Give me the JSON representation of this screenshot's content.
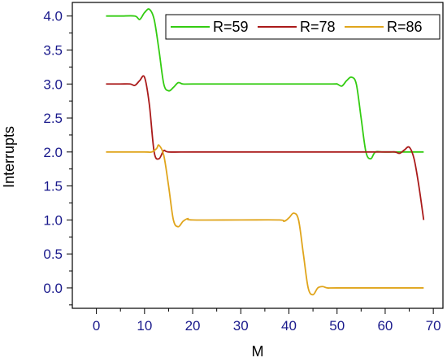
{
  "chart_data": {
    "type": "line",
    "title": "",
    "xlabel": "M",
    "ylabel": "Interrupts",
    "xlim": [
      -5,
      72
    ],
    "ylim": [
      -0.3,
      4.2
    ],
    "xticks": [
      0,
      10,
      20,
      30,
      40,
      50,
      60,
      70
    ],
    "yticks": [
      0.0,
      0.5,
      1.0,
      1.5,
      2.0,
      2.5,
      3.0,
      3.5,
      4.0
    ],
    "tick_format_y": 1,
    "grid": false,
    "legend_position": "top-right",
    "series": [
      {
        "name": "R=59",
        "color": "#33cc11",
        "points": [
          [
            2,
            4.0
          ],
          [
            5,
            4.0
          ],
          [
            8,
            4.0
          ],
          [
            9,
            3.95
          ],
          [
            10,
            4.05
          ],
          [
            11,
            4.1
          ],
          [
            12,
            3.95
          ],
          [
            13,
            3.5
          ],
          [
            14,
            3.0
          ],
          [
            15,
            2.9
          ],
          [
            16,
            2.95
          ],
          [
            17,
            3.02
          ],
          [
            18,
            3.0
          ],
          [
            20,
            3.0
          ],
          [
            30,
            3.0
          ],
          [
            40,
            3.0
          ],
          [
            49,
            3.0
          ],
          [
            50,
            3.0
          ],
          [
            51,
            2.97
          ],
          [
            52,
            3.05
          ],
          [
            53,
            3.1
          ],
          [
            54,
            3.0
          ],
          [
            55,
            2.5
          ],
          [
            56,
            2.0
          ],
          [
            57,
            1.9
          ],
          [
            58,
            2.0
          ],
          [
            60,
            2.0
          ],
          [
            68,
            2.0
          ]
        ]
      },
      {
        "name": "R=78",
        "color": "#aa1a1a",
        "points": [
          [
            2,
            3.0
          ],
          [
            5,
            3.0
          ],
          [
            7,
            3.0
          ],
          [
            8,
            2.98
          ],
          [
            9,
            3.05
          ],
          [
            10,
            3.1
          ],
          [
            11,
            2.7
          ],
          [
            12,
            2.0
          ],
          [
            13,
            1.9
          ],
          [
            14,
            2.02
          ],
          [
            15,
            2.0
          ],
          [
            20,
            2.0
          ],
          [
            30,
            2.0
          ],
          [
            40,
            2.0
          ],
          [
            50,
            2.0
          ],
          [
            60,
            2.0
          ],
          [
            62,
            2.0
          ],
          [
            63,
            1.98
          ],
          [
            64,
            2.03
          ],
          [
            65,
            2.07
          ],
          [
            66,
            1.9
          ],
          [
            67,
            1.5
          ],
          [
            68,
            1.0
          ]
        ]
      },
      {
        "name": "R=86",
        "color": "#e0a51c",
        "points": [
          [
            2,
            2.0
          ],
          [
            10,
            2.0
          ],
          [
            11.5,
            2.0
          ],
          [
            12.5,
            2.05
          ],
          [
            13,
            2.1
          ],
          [
            14,
            1.95
          ],
          [
            15,
            1.5
          ],
          [
            16,
            1.0
          ],
          [
            17,
            0.9
          ],
          [
            18,
            0.98
          ],
          [
            19,
            1.02
          ],
          [
            20,
            1.0
          ],
          [
            30,
            1.0
          ],
          [
            38,
            1.0
          ],
          [
            39,
            0.98
          ],
          [
            40,
            1.03
          ],
          [
            41,
            1.1
          ],
          [
            42,
            1.0
          ],
          [
            43,
            0.5
          ],
          [
            44,
            0.0
          ],
          [
            45,
            -0.1
          ],
          [
            46,
            0.0
          ],
          [
            47,
            0.02
          ],
          [
            48,
            0.0
          ],
          [
            50,
            0.0
          ],
          [
            60,
            0.0
          ],
          [
            68,
            0.0
          ]
        ]
      }
    ]
  }
}
